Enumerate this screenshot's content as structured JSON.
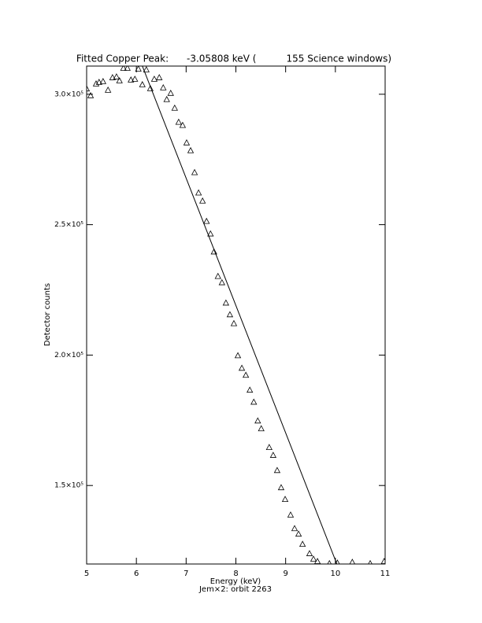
{
  "chart_data": {
    "type": "scatter",
    "title": "Fitted Copper Peak:      -3.05808 keV (          155 Science windows)",
    "xlabel": "Energy (keV)",
    "subtitle": "Jem×2: orbit 2263",
    "ylabel": "Detector counts",
    "xlim": [
      5,
      11
    ],
    "xticks": [
      5,
      6,
      7,
      8,
      9,
      10,
      11
    ],
    "ylim": [
      119900,
      310800
    ],
    "yticks": [
      {
        "value": 150000,
        "label": "1.5×10⁵"
      },
      {
        "value": 200000,
        "label": "2.0×10⁵"
      },
      {
        "value": 250000,
        "label": "2.5×10⁵"
      },
      {
        "value": 300000,
        "label": "3.0×10⁵"
      }
    ],
    "color": "#000000",
    "series": [
      {
        "marker": "triangle",
        "color": "#000000",
        "x": [
          5.0,
          5.08,
          5.19,
          5.25,
          5.33,
          5.43,
          5.52,
          5.6,
          5.66,
          5.74,
          5.82,
          5.89,
          5.97,
          6.04,
          6.12,
          6.2,
          6.28,
          6.36,
          6.46,
          6.54,
          6.61,
          6.69,
          6.77,
          6.85,
          6.93,
          7.01,
          7.09,
          7.17,
          7.25,
          7.33,
          7.41,
          7.49,
          7.56,
          7.64,
          7.72,
          7.8,
          7.88,
          7.96,
          8.04,
          8.12,
          8.2,
          8.28,
          8.36,
          8.44,
          8.51,
          8.67,
          8.75,
          8.83,
          8.91,
          8.99,
          9.1,
          9.18,
          9.26,
          9.34,
          9.48,
          9.56,
          9.64,
          9.88,
          10.04,
          10.34,
          10.7,
          10.98
        ],
        "values": [
          302000,
          299400,
          303900,
          304500,
          304800,
          301500,
          306300,
          306600,
          305100,
          309900,
          309900,
          305400,
          305700,
          309600,
          303600,
          309300,
          302100,
          305700,
          306300,
          302400,
          297900,
          300300,
          294600,
          289200,
          288000,
          281300,
          278300,
          269900,
          262100,
          259000,
          251200,
          246400,
          239500,
          230100,
          227700,
          219900,
          215400,
          212000,
          199700,
          194900,
          192200,
          186500,
          181900,
          174700,
          171700,
          164500,
          161500,
          155700,
          149100,
          144600,
          138600,
          133400,
          131300,
          127400,
          123800,
          121700,
          120800,
          120000,
          120200,
          120500,
          120000,
          120800
        ]
      },
      {
        "style": "line",
        "color": "#000000",
        "x": [
          6.12,
          10.03
        ],
        "values": [
          310800,
          119900
        ]
      }
    ]
  }
}
